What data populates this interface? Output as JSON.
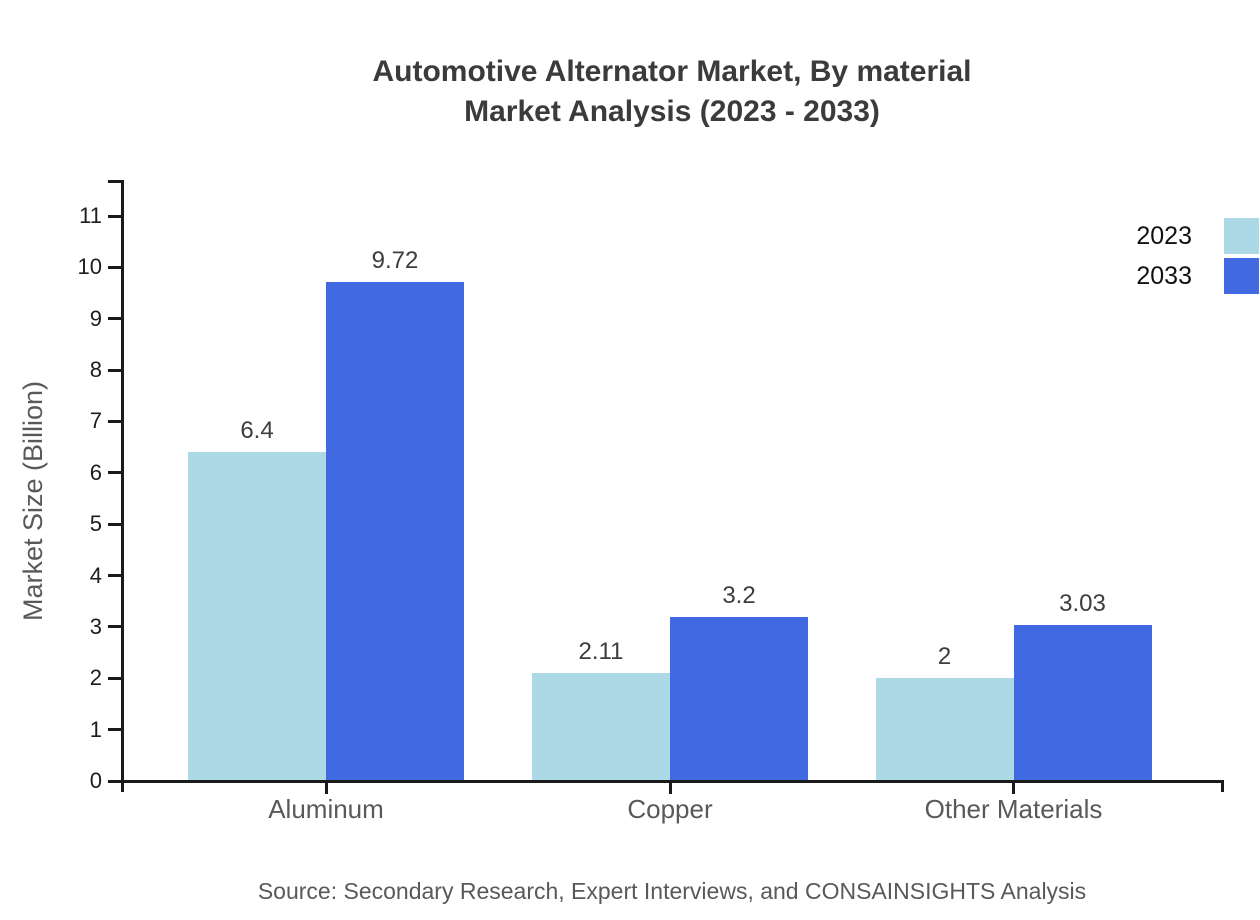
{
  "title": {
    "line1": "Automotive Alternator Market, By material",
    "line2": "Market Analysis (2023 - 2033)"
  },
  "y_axis_title": "Market Size (Billion)",
  "source_note": "Source: Secondary Research, Expert Interviews, and CONSAINSIGHTS Analysis",
  "legend": {
    "items": [
      {
        "label": "2023",
        "color": "#ADD8E6"
      },
      {
        "label": "2033",
        "color": "#4169E1"
      }
    ]
  },
  "chart_data": {
    "type": "bar",
    "title": "Automotive Alternator Market, By material Market Analysis (2023 - 2033)",
    "categories": [
      "Aluminum",
      "Copper",
      "Other Materials"
    ],
    "series": [
      {
        "name": "2023",
        "color": "#ADD8E6",
        "values": [
          6.4,
          2.11,
          2
        ],
        "labels": [
          "6.4",
          "2.11",
          "2"
        ]
      },
      {
        "name": "2033",
        "color": "#4169E1",
        "values": [
          9.72,
          3.2,
          3.03
        ],
        "labels": [
          "9.72",
          "3.2",
          "3.03"
        ]
      }
    ],
    "xlabel": "",
    "ylabel": "Market Size (Billion)",
    "ylim": [
      0,
      11
    ],
    "yticks": [
      0,
      1,
      2,
      3,
      4,
      5,
      6,
      7,
      8,
      9,
      10,
      11
    ],
    "grid": false,
    "legend_position": "top-right",
    "colors": {
      "axis": "#1a1a1a",
      "tick_label": "#1d1d1d",
      "value_label": "#3d3d3d",
      "category_label": "#595959",
      "title": "#3b3b3b",
      "background": "#ffffff"
    }
  }
}
